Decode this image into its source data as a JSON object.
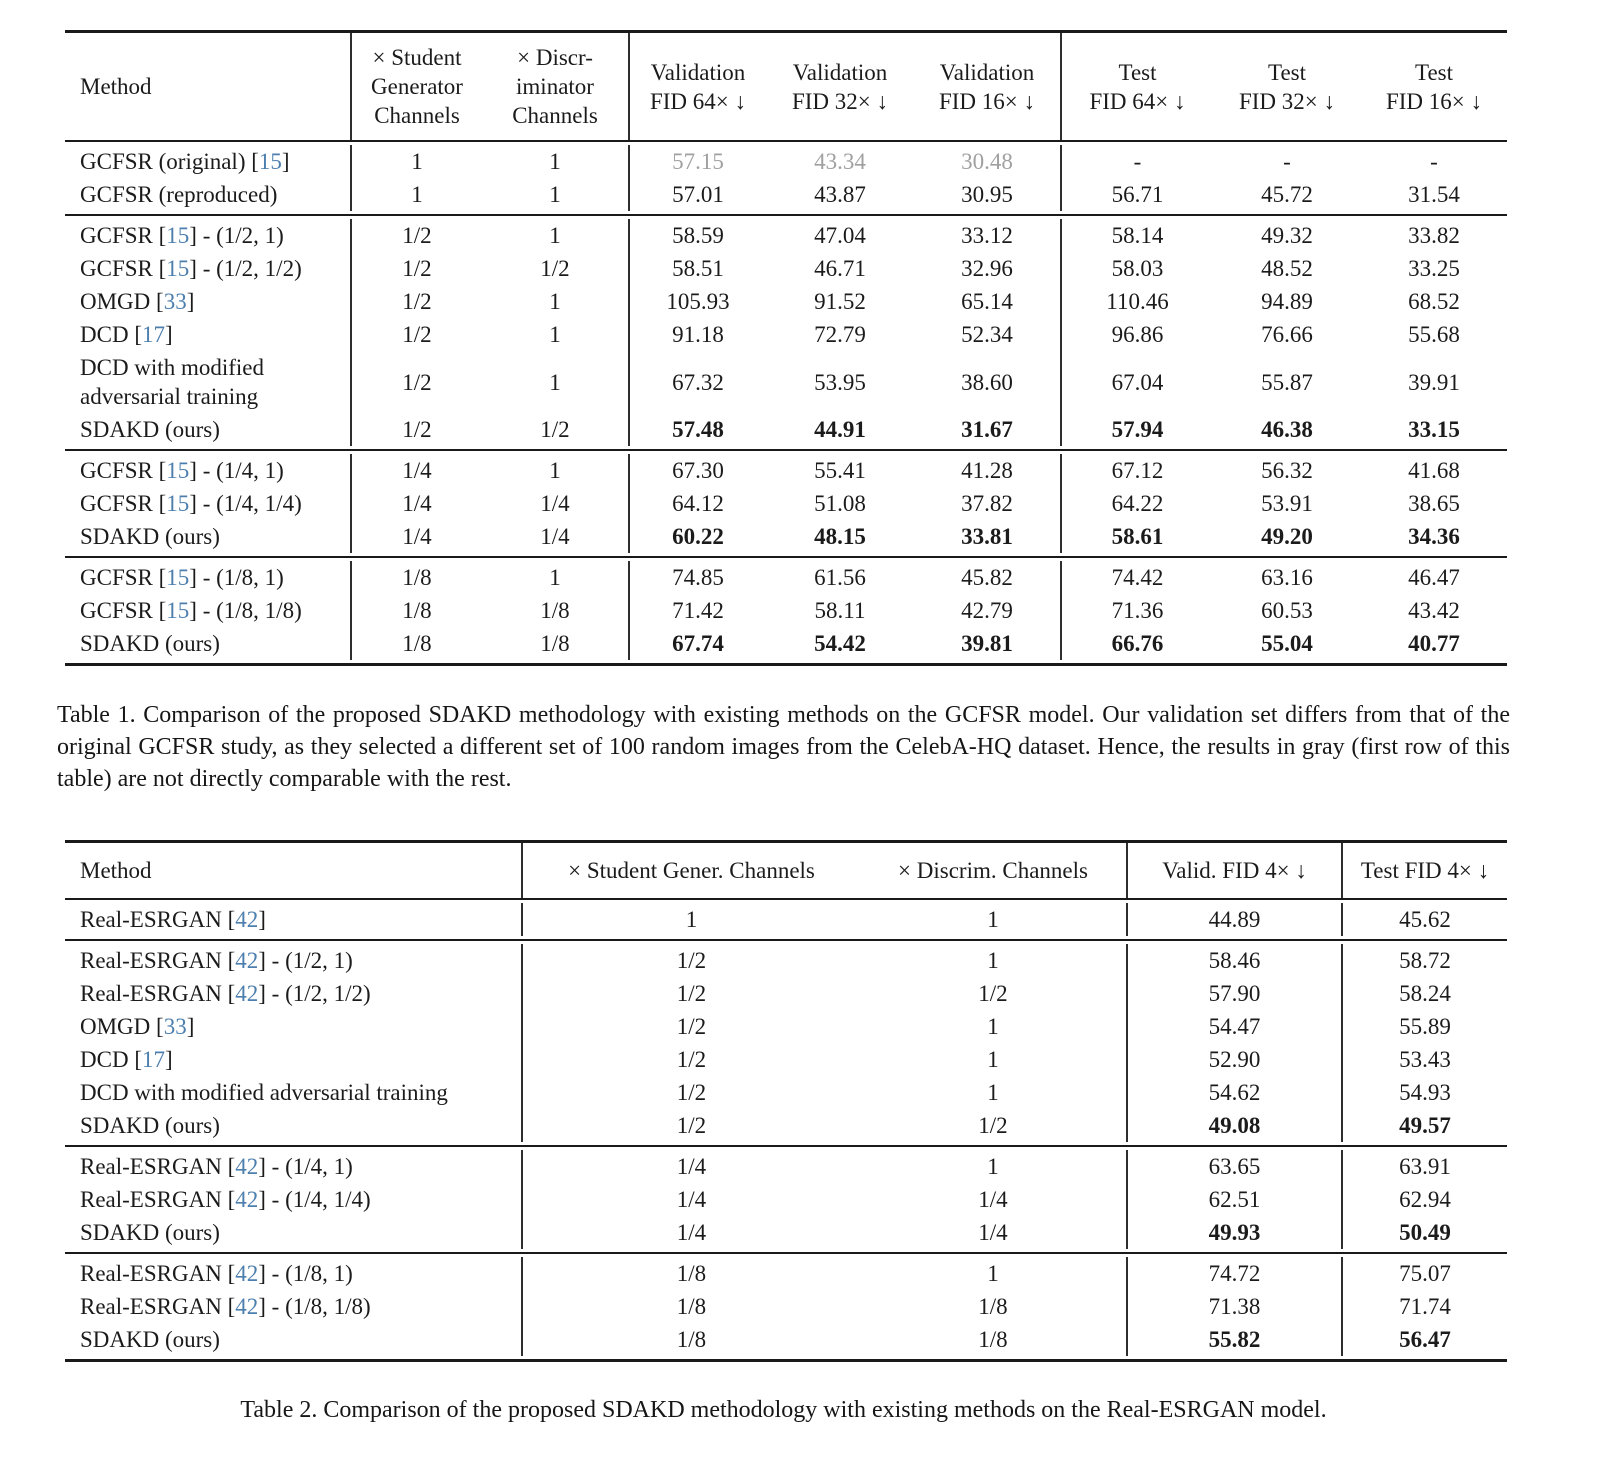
{
  "colors": {
    "citation_blue": "#4d7fae",
    "gray_value": "#a0a0a0",
    "rule_black": "#1a1a1a"
  },
  "table1": {
    "caption": "Table 1. Comparison of the proposed SDAKD methodology with existing methods on the GCFSR model. Our validation set differs from that of the original GCFSR study, as they selected a different set of 100 random images from the CelebA-HQ dataset. Hence, the results in gray (first row of this table) are not directly comparable with the rest.",
    "header": {
      "method": "Method",
      "columns": [
        {
          "name": "student-generator-channels-header",
          "lines": [
            "× Student",
            "Generator",
            "Channels"
          ]
        },
        {
          "name": "discriminator-channels-header",
          "lines": [
            "× Discr-",
            "iminator",
            "Channels"
          ]
        },
        {
          "name": "validation-fid-64x-header",
          "lines": [
            "Validation",
            "FID 64× ↓"
          ]
        },
        {
          "name": "validation-fid-32x-header",
          "lines": [
            "Validation",
            "FID 32× ↓"
          ]
        },
        {
          "name": "validation-fid-16x-header",
          "lines": [
            "Validation",
            "FID 16× ↓"
          ]
        },
        {
          "name": "test-fid-64x-header",
          "lines": [
            "Test",
            "FID 64× ↓"
          ]
        },
        {
          "name": "test-fid-32x-header",
          "lines": [
            "Test",
            "FID 32× ↓"
          ]
        },
        {
          "name": "test-fid-16x-header",
          "lines": [
            "Test",
            "FID 16× ↓"
          ]
        }
      ]
    },
    "divider_cols": [
      0,
      2,
      5
    ],
    "sections": [
      {
        "rows": [
          {
            "pre": "GCFSR (original) ",
            "cite": "15",
            "post": "",
            "cells": [
              "1",
              "1",
              "57.15",
              "43.34",
              "30.48",
              "-",
              "-",
              "-"
            ],
            "gray_cells": [
              2,
              3,
              4
            ],
            "bold_vals": false
          },
          {
            "pre": "GCFSR (reproduced)",
            "cite": null,
            "post": "",
            "cells": [
              "1",
              "1",
              "57.01",
              "43.87",
              "30.95",
              "56.71",
              "45.72",
              "31.54"
            ],
            "gray_cells": [],
            "bold_vals": false
          }
        ]
      },
      {
        "rows": [
          {
            "pre": "GCFSR ",
            "cite": "15",
            "post": " - (1/2, 1)",
            "cells": [
              "1/2",
              "1",
              "58.59",
              "47.04",
              "33.12",
              "58.14",
              "49.32",
              "33.82"
            ],
            "gray_cells": [],
            "bold_vals": false
          },
          {
            "pre": "GCFSR ",
            "cite": "15",
            "post": " - (1/2, 1/2)",
            "cells": [
              "1/2",
              "1/2",
              "58.51",
              "46.71",
              "32.96",
              "58.03",
              "48.52",
              "33.25"
            ],
            "gray_cells": [],
            "bold_vals": false
          },
          {
            "pre": "OMGD ",
            "cite": "33",
            "post": "",
            "cells": [
              "1/2",
              "1",
              "105.93",
              "91.52",
              "65.14",
              "110.46",
              "94.89",
              "68.52"
            ],
            "gray_cells": [],
            "bold_vals": false
          },
          {
            "pre": "DCD ",
            "cite": "17",
            "post": "",
            "cells": [
              "1/2",
              "1",
              "91.18",
              "72.79",
              "52.34",
              "96.86",
              "76.66",
              "55.68"
            ],
            "gray_cells": [],
            "bold_vals": false
          },
          {
            "pre": "DCD with modified adversarial training",
            "cite": null,
            "post": "",
            "cells": [
              "1/2",
              "1",
              "67.32",
              "53.95",
              "38.60",
              "67.04",
              "55.87",
              "39.91"
            ],
            "gray_cells": [],
            "bold_vals": false
          },
          {
            "pre": "SDAKD (ours)",
            "cite": null,
            "post": "",
            "cells": [
              "1/2",
              "1/2",
              "57.48",
              "44.91",
              "31.67",
              "57.94",
              "46.38",
              "33.15"
            ],
            "gray_cells": [],
            "bold_vals": true
          }
        ]
      },
      {
        "rows": [
          {
            "pre": "GCFSR ",
            "cite": "15",
            "post": " - (1/4, 1)",
            "cells": [
              "1/4",
              "1",
              "67.30",
              "55.41",
              "41.28",
              "67.12",
              "56.32",
              "41.68"
            ],
            "gray_cells": [],
            "bold_vals": false
          },
          {
            "pre": "GCFSR ",
            "cite": "15",
            "post": " - (1/4, 1/4)",
            "cells": [
              "1/4",
              "1/4",
              "64.12",
              "51.08",
              "37.82",
              "64.22",
              "53.91",
              "38.65"
            ],
            "gray_cells": [],
            "bold_vals": false
          },
          {
            "pre": "SDAKD (ours)",
            "cite": null,
            "post": "",
            "cells": [
              "1/4",
              "1/4",
              "60.22",
              "48.15",
              "33.81",
              "58.61",
              "49.20",
              "34.36"
            ],
            "gray_cells": [],
            "bold_vals": true
          }
        ]
      },
      {
        "rows": [
          {
            "pre": "GCFSR ",
            "cite": "15",
            "post": " - (1/8, 1)",
            "cells": [
              "1/8",
              "1",
              "74.85",
              "61.56",
              "45.82",
              "74.42",
              "63.16",
              "46.47"
            ],
            "gray_cells": [],
            "bold_vals": false
          },
          {
            "pre": "GCFSR ",
            "cite": "15",
            "post": " - (1/8, 1/8)",
            "cells": [
              "1/8",
              "1/8",
              "71.42",
              "58.11",
              "42.79",
              "71.36",
              "60.53",
              "43.42"
            ],
            "gray_cells": [],
            "bold_vals": false
          },
          {
            "pre": "SDAKD (ours)",
            "cite": null,
            "post": "",
            "cells": [
              "1/8",
              "1/8",
              "67.74",
              "54.42",
              "39.81",
              "66.76",
              "55.04",
              "40.77"
            ],
            "gray_cells": [],
            "bold_vals": true
          }
        ]
      }
    ]
  },
  "table2": {
    "caption": "Table 2. Comparison of the proposed SDAKD methodology with existing methods on the Real-ESRGAN model.",
    "header": {
      "method": "Method",
      "columns": [
        {
          "name": "student-gener-channels-header",
          "lines": [
            "× Student Gener. Channels"
          ]
        },
        {
          "name": "discrim-channels-header",
          "lines": [
            "× Discrim. Channels"
          ]
        },
        {
          "name": "valid-fid-4x-header",
          "lines": [
            "Valid. FID 4× ↓"
          ]
        },
        {
          "name": "test-fid-4x-header",
          "lines": [
            "Test FID 4× ↓"
          ]
        }
      ]
    },
    "divider_cols": [
      0,
      2,
      3
    ],
    "sections": [
      {
        "rows": [
          {
            "pre": "Real-ESRGAN ",
            "cite": "42",
            "post": "",
            "cells": [
              "1",
              "1",
              "44.89",
              "45.62"
            ],
            "gray_cells": [],
            "bold_vals": false
          }
        ]
      },
      {
        "rows": [
          {
            "pre": "Real-ESRGAN ",
            "cite": "42",
            "post": " - (1/2, 1)",
            "cells": [
              "1/2",
              "1",
              "58.46",
              "58.72"
            ],
            "gray_cells": [],
            "bold_vals": false
          },
          {
            "pre": "Real-ESRGAN ",
            "cite": "42",
            "post": " - (1/2, 1/2)",
            "cells": [
              "1/2",
              "1/2",
              "57.90",
              "58.24"
            ],
            "gray_cells": [],
            "bold_vals": false
          },
          {
            "pre": "OMGD ",
            "cite": "33",
            "post": "",
            "cells": [
              "1/2",
              "1",
              "54.47",
              "55.89"
            ],
            "gray_cells": [],
            "bold_vals": false
          },
          {
            "pre": "DCD ",
            "cite": "17",
            "post": "",
            "cells": [
              "1/2",
              "1",
              "52.90",
              "53.43"
            ],
            "gray_cells": [],
            "bold_vals": false
          },
          {
            "pre": "DCD with modified adversarial training",
            "cite": null,
            "post": "",
            "cells": [
              "1/2",
              "1",
              "54.62",
              "54.93"
            ],
            "gray_cells": [],
            "bold_vals": false
          },
          {
            "pre": "SDAKD (ours)",
            "cite": null,
            "post": "",
            "cells": [
              "1/2",
              "1/2",
              "49.08",
              "49.57"
            ],
            "gray_cells": [],
            "bold_vals": true
          }
        ]
      },
      {
        "rows": [
          {
            "pre": "Real-ESRGAN ",
            "cite": "42",
            "post": " - (1/4, 1)",
            "cells": [
              "1/4",
              "1",
              "63.65",
              "63.91"
            ],
            "gray_cells": [],
            "bold_vals": false
          },
          {
            "pre": "Real-ESRGAN ",
            "cite": "42",
            "post": " - (1/4, 1/4)",
            "cells": [
              "1/4",
              "1/4",
              "62.51",
              "62.94"
            ],
            "gray_cells": [],
            "bold_vals": false
          },
          {
            "pre": "SDAKD (ours)",
            "cite": null,
            "post": "",
            "cells": [
              "1/4",
              "1/4",
              "49.93",
              "50.49"
            ],
            "gray_cells": [],
            "bold_vals": true
          }
        ]
      },
      {
        "rows": [
          {
            "pre": "Real-ESRGAN ",
            "cite": "42",
            "post": " - (1/8, 1)",
            "cells": [
              "1/8",
              "1",
              "74.72",
              "75.07"
            ],
            "gray_cells": [],
            "bold_vals": false
          },
          {
            "pre": "Real-ESRGAN ",
            "cite": "42",
            "post": " - (1/8, 1/8)",
            "cells": [
              "1/8",
              "1/8",
              "71.38",
              "71.74"
            ],
            "gray_cells": [],
            "bold_vals": false
          },
          {
            "pre": "SDAKD (ours)",
            "cite": null,
            "post": "",
            "cells": [
              "1/8",
              "1/8",
              "55.82",
              "56.47"
            ],
            "gray_cells": [],
            "bold_vals": true
          }
        ]
      }
    ]
  }
}
